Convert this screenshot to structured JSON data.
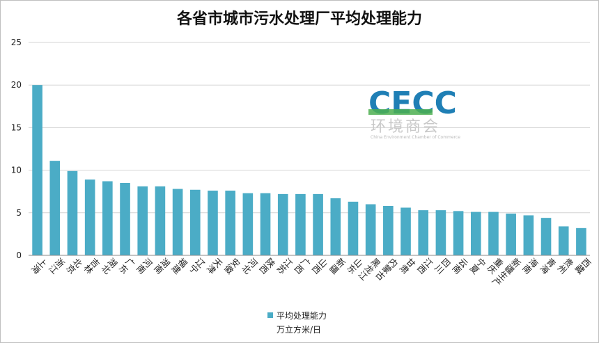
{
  "chart_data": {
    "type": "bar",
    "title": "各省市城市污水处理厂平均处理能力",
    "categories": [
      "上海",
      "浙江",
      "北京",
      "吉林",
      "湖北",
      "广东",
      "河南",
      "湖南",
      "福建",
      "辽宁",
      "天津",
      "安徽",
      "河北",
      "陕西",
      "江苏",
      "广西",
      "山西",
      "新疆",
      "山东",
      "黑龙江",
      "内蒙古",
      "甘肃",
      "江西",
      "四川",
      "云南",
      "宁夏",
      "重庆",
      "新疆生产",
      "海南",
      "青海",
      "贵州",
      "西藏"
    ],
    "series": [
      {
        "name": "平均处理能力",
        "color": "#4bacc6",
        "values": [
          20.0,
          11.1,
          9.9,
          8.9,
          8.7,
          8.5,
          8.1,
          8.1,
          7.8,
          7.7,
          7.6,
          7.6,
          7.3,
          7.3,
          7.2,
          7.2,
          7.2,
          6.7,
          6.3,
          6.0,
          5.8,
          5.6,
          5.3,
          5.3,
          5.2,
          5.1,
          5.1,
          4.9,
          4.7,
          4.4,
          3.4,
          3.2
        ]
      }
    ],
    "unit": "万立方米/日",
    "ylim": [
      0,
      25
    ],
    "yticks": [
      0,
      5,
      10,
      15,
      20,
      25
    ],
    "grid": true,
    "legend": "bottom-center"
  },
  "watermark": {
    "logo_text": "CECC",
    "cn_text": "环境商会",
    "en_text": "China Environment Chamber of Commerce"
  }
}
